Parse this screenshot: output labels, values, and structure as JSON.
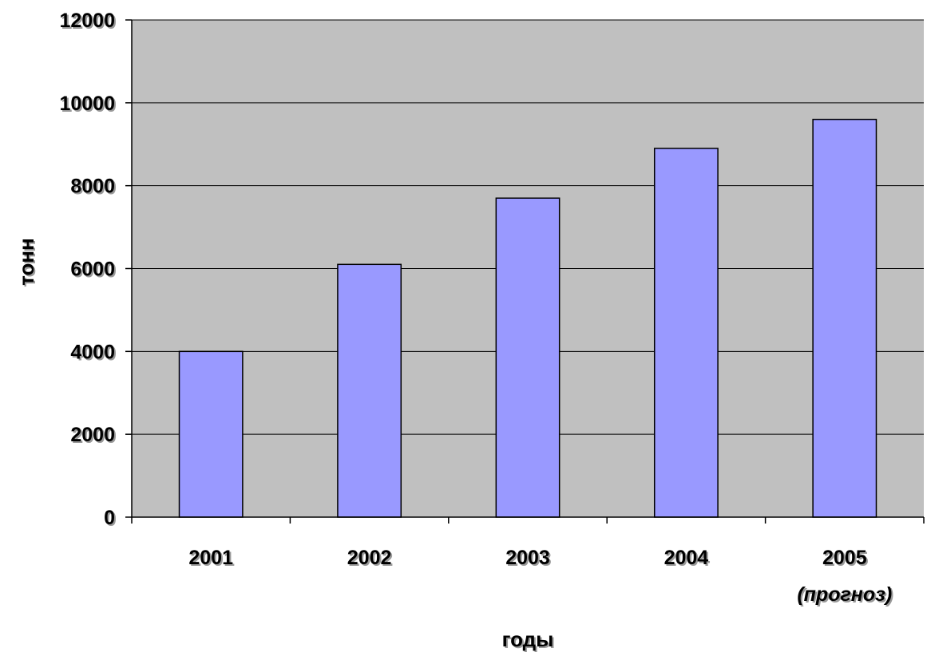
{
  "chart_data": {
    "type": "bar",
    "categories": [
      "2001",
      "2002",
      "2003",
      "2004",
      "2005"
    ],
    "category_notes": [
      "",
      "",
      "",
      "",
      "(прогноз)"
    ],
    "values": [
      4000,
      6100,
      7700,
      8900,
      9600
    ],
    "xlabel": "годы",
    "ylabel": "тонн",
    "ylim": [
      0,
      12000
    ],
    "yticks": [
      "0",
      "2000",
      "4000",
      "6000",
      "8000",
      "10000",
      "12000"
    ],
    "grid": true,
    "legend": "none",
    "colors": {
      "bar": "#9999ff",
      "plot_background": "#c0c0c0",
      "gridline": "#000000"
    }
  }
}
